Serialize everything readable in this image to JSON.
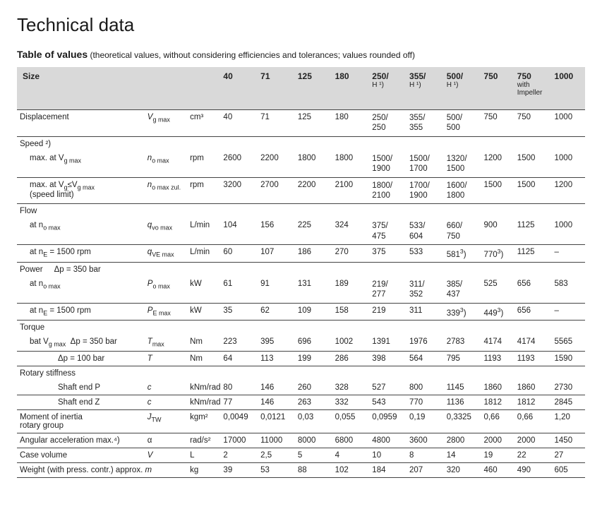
{
  "title": "Technical data",
  "subtitle_bold": "Table of values",
  "subtitle_paren": "(theoretical values, without considering efficiencies and tolerances; values rounded off)",
  "head": {
    "size": "Size",
    "c40": "40",
    "c71": "71",
    "c125": "125",
    "c180": "180",
    "c250": "250/",
    "c250s": "H ¹)",
    "c355": "355/",
    "c355s": "H ¹)",
    "c500": "500/",
    "c500s": "H ¹)",
    "c750": "750",
    "c750i": "750",
    "c750is": "with Impeller",
    "c1000": "1000"
  },
  "rows": {
    "disp": {
      "label": "Displacement",
      "sym": "V",
      "sub": "g max",
      "unit": "cm³",
      "v": [
        "40",
        "71",
        "125",
        "180",
        "250/\n250",
        "355/\n355",
        "500/\n500",
        "750",
        "750",
        "1000"
      ]
    },
    "speedhdr": {
      "label": "Speed ²)"
    },
    "speed1": {
      "label": "max. at V",
      "labelsub": "g max",
      "sym": "n",
      "sub": "o max",
      "unit": "rpm",
      "v": [
        "2600",
        "2200",
        "1800",
        "1800",
        "1500/\n1900",
        "1500/\n1700",
        "1320/\n1500",
        "1200",
        "1500",
        "1000"
      ]
    },
    "speed2": {
      "label": "max. at V",
      "labelsub": "g",
      "labelrest": "≤V",
      "labelsub2": "g max",
      "label2": "(speed limit)",
      "sym": "n",
      "sub": "o max zul.",
      "unit": "rpm",
      "v": [
        "3200",
        "2700",
        "2200",
        "2100",
        "1800/\n2100",
        "1700/\n1900",
        "1600/\n1800",
        "1500",
        "1500",
        "1200"
      ]
    },
    "flowhdr": {
      "label": "Flow"
    },
    "flow1": {
      "label": "at n",
      "labelsub": "o max",
      "sym": "q",
      "sub": "vo max",
      "unit": "L/min",
      "v": [
        "104",
        "156",
        "225",
        "324",
        "375/\n475",
        "533/\n604",
        "660/\n750",
        "900",
        "1125",
        "1000"
      ]
    },
    "flow2": {
      "label": "at n",
      "labelsub": "E",
      "labelrest": " = 1500 rpm",
      "sym": "q",
      "sub": "VE max",
      "unit": "L/min",
      "v": [
        "60",
        "107",
        "186",
        "270",
        "375",
        "533",
        "581³)",
        "770³)",
        "1125",
        "–"
      ]
    },
    "powhdr": {
      "label": "Power",
      "labelrest": "Δp = 350 bar"
    },
    "pow1": {
      "label": "at n",
      "labelsub": "o max",
      "sym": "P",
      "sub": "o max",
      "unit": "kW",
      "v": [
        "61",
        "91",
        "131",
        "189",
        "219/\n277",
        "311/\n352",
        "385/\n437",
        "525",
        "656",
        "583"
      ]
    },
    "pow2": {
      "label": "at n",
      "labelsub": "E",
      "labelrest": " = 1500 rpm",
      "sym": "P",
      "sub": "E max",
      "unit": "kW",
      "v": [
        "35",
        "62",
        "109",
        "158",
        "219",
        "311",
        "339³)",
        "449³)",
        "656",
        "–"
      ]
    },
    "torqhdr": {
      "label": "Torque"
    },
    "torq1": {
      "label": "bat V",
      "labelsub": "g max",
      "labelrest": "   Δp = 350 bar",
      "sym": "T",
      "sub": "max",
      "unit": "Nm",
      "v": [
        "223",
        "395",
        "696",
        "1002",
        "1391",
        "1976",
        "2783",
        "4174",
        "4174",
        "5565"
      ]
    },
    "torq2": {
      "label": "Δp = 100 bar",
      "sym": "T",
      "unit": "Nm",
      "v": [
        "64",
        "113",
        "199",
        "286",
        "398",
        "564",
        "795",
        "1193",
        "1193",
        "1590"
      ]
    },
    "rothdr": {
      "label": "Rotary stiffness"
    },
    "rot1": {
      "label": "Shaft end P",
      "sym": "c",
      "unit": "kNm/rad",
      "v": [
        "80",
        "146",
        "260",
        "328",
        "527",
        "800",
        "1145",
        "1860",
        "1860",
        "2730"
      ]
    },
    "rot2": {
      "label": "Shaft end Z",
      "sym": "c",
      "unit": "kNm/rad",
      "v": [
        "77",
        "146",
        "263",
        "332",
        "543",
        "770",
        "1136",
        "1812",
        "1812",
        "2845"
      ]
    },
    "moi": {
      "label": "Moment of inertia",
      "label2": "rotary group",
      "sym": "J",
      "sub": "TW",
      "unit": "kgm²",
      "v": [
        "0,0049",
        "0,0121",
        "0,03",
        "0,055",
        "0,0959",
        "0,19",
        "0,3325",
        "0,66",
        "0,66",
        "1,20"
      ]
    },
    "ang": {
      "label": "Angular acceleration max.⁴)",
      "sym": "α",
      "unit": "rad/s²",
      "v": [
        "17000",
        "11000",
        "8000",
        "6800",
        "4800",
        "3600",
        "2800",
        "2000",
        "2000",
        "1450"
      ]
    },
    "case": {
      "label": "Case volume",
      "sym": "V",
      "unit": "L",
      "v": [
        "2",
        "2,5",
        "5",
        "4",
        "10",
        "8",
        "14",
        "19",
        "22",
        "27"
      ]
    },
    "wt": {
      "label": "Weight (with press. contr.) approx.",
      "sym": "m",
      "unit": "kg",
      "v": [
        "39",
        "53",
        "88",
        "102",
        "184",
        "207",
        "320",
        "460",
        "490",
        "605"
      ]
    }
  }
}
